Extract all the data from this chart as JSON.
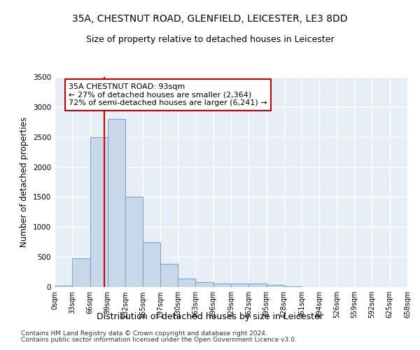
{
  "title_line1": "35A, CHESTNUT ROAD, GLENFIELD, LEICESTER, LE3 8DD",
  "title_line2": "Size of property relative to detached houses in Leicester",
  "xlabel": "Distribution of detached houses by size in Leicester",
  "ylabel": "Number of detached properties",
  "bar_color": "#c8d8ea",
  "bar_edge_color": "#7aaac8",
  "background_color": "#e8eef5",
  "grid_color": "#ffffff",
  "bin_edges": [
    0,
    33,
    66,
    99,
    132,
    165,
    197,
    230,
    263,
    296,
    329,
    362,
    395,
    428,
    461,
    494,
    526,
    559,
    592,
    625,
    658
  ],
  "bin_labels": [
    "0sqm",
    "33sqm",
    "66sqm",
    "99sqm",
    "132sqm",
    "165sqm",
    "197sqm",
    "230sqm",
    "263sqm",
    "296sqm",
    "329sqm",
    "362sqm",
    "395sqm",
    "428sqm",
    "461sqm",
    "494sqm",
    "526sqm",
    "559sqm",
    "592sqm",
    "625sqm",
    "658sqm"
  ],
  "bar_heights": [
    20,
    480,
    2500,
    2800,
    1500,
    750,
    380,
    140,
    80,
    60,
    60,
    60,
    30,
    10,
    5,
    5,
    2,
    2,
    1,
    0
  ],
  "property_size": 93,
  "property_line_color": "#cc0000",
  "annotation_line1": "35A CHESTNUT ROAD: 93sqm",
  "annotation_line2": "← 27% of detached houses are smaller (2,364)",
  "annotation_line3": "72% of semi-detached houses are larger (6,241) →",
  "annotation_box_color": "#ffffff",
  "annotation_box_edge_color": "#cc0000",
  "ylim": [
    0,
    3500
  ],
  "xlim": [
    0,
    658
  ],
  "footnote1": "Contains HM Land Registry data © Crown copyright and database right 2024.",
  "footnote2": "Contains public sector information licensed under the Open Government Licence v3.0.",
  "title_fontsize": 10,
  "subtitle_fontsize": 9,
  "axis_label_fontsize": 8.5,
  "tick_fontsize": 7,
  "annotation_fontsize": 8,
  "footnote_fontsize": 6.5,
  "yticks": [
    0,
    500,
    1000,
    1500,
    2000,
    2500,
    3000,
    3500
  ]
}
